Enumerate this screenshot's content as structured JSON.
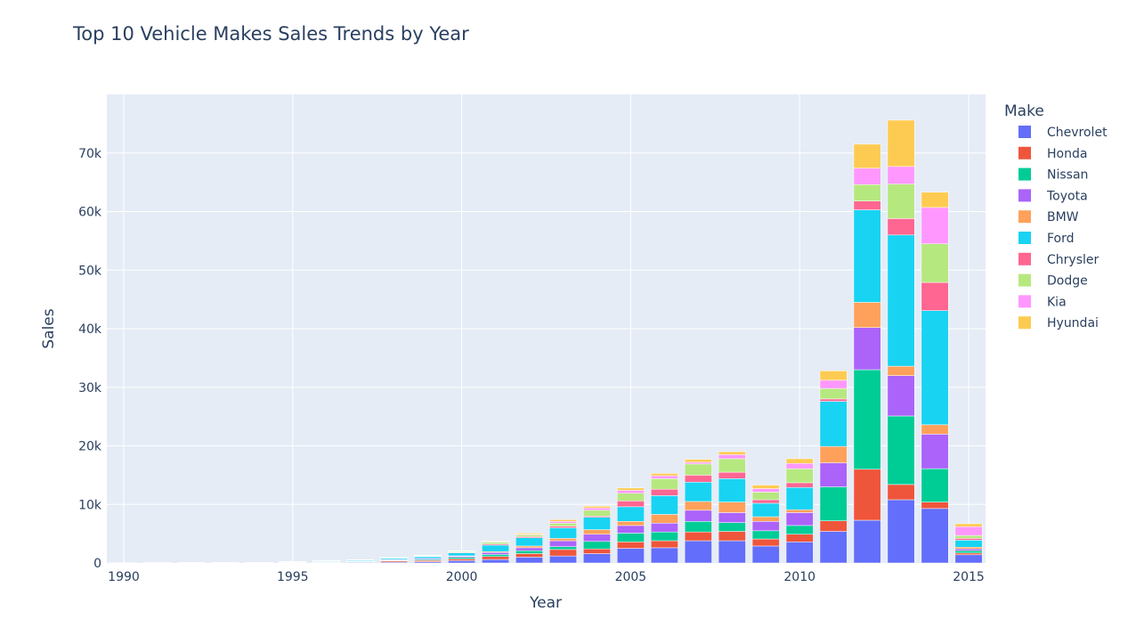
{
  "chart_data": {
    "type": "bar",
    "stacked": true,
    "title": "Top 10 Vehicle Makes Sales Trends by Year",
    "xlabel": "Year",
    "ylabel": "Sales",
    "legend_title": "Make",
    "legend_position": "right",
    "xlim": [
      1989.5,
      2015.5
    ],
    "ylim": [
      0,
      80000
    ],
    "x_ticks": [
      1990,
      1995,
      2000,
      2005,
      2010,
      2015
    ],
    "y_ticks": [
      0,
      10000,
      20000,
      30000,
      40000,
      50000,
      60000,
      70000
    ],
    "y_tick_labels": [
      "0",
      "10k",
      "20k",
      "30k",
      "40k",
      "50k",
      "60k",
      "70k"
    ],
    "x": [
      1990,
      1991,
      1992,
      1993,
      1994,
      1995,
      1996,
      1997,
      1998,
      1999,
      2000,
      2001,
      2002,
      2003,
      2004,
      2005,
      2006,
      2007,
      2008,
      2009,
      2010,
      2011,
      2012,
      2013,
      2014,
      2015
    ],
    "grid": true,
    "plot_bgcolor": "#e5ecf6",
    "series": [
      {
        "name": "Chevrolet",
        "color": "#636efa",
        "values": [
          10,
          15,
          20,
          25,
          30,
          60,
          80,
          110,
          160,
          220,
          400,
          600,
          1000,
          1200,
          1600,
          2500,
          2600,
          3800,
          3800,
          2900,
          3600,
          5400,
          7300,
          10800,
          9300,
          1400
        ]
      },
      {
        "name": "Honda",
        "color": "#ef553b",
        "values": [
          5,
          8,
          10,
          15,
          15,
          40,
          60,
          80,
          200,
          200,
          300,
          500,
          600,
          1100,
          800,
          1100,
          1200,
          1500,
          1600,
          1200,
          1300,
          1800,
          8700,
          2600,
          1100,
          300
        ]
      },
      {
        "name": "Nissan",
        "color": "#00cc96",
        "values": [
          5,
          5,
          8,
          10,
          10,
          30,
          40,
          50,
          100,
          150,
          250,
          350,
          500,
          500,
          1300,
          1500,
          1500,
          1800,
          1500,
          1400,
          1500,
          5800,
          17000,
          11700,
          5700,
          400
        ]
      },
      {
        "name": "Toyota",
        "color": "#ab63fa",
        "values": [
          5,
          5,
          8,
          10,
          10,
          30,
          40,
          50,
          100,
          150,
          200,
          350,
          500,
          1000,
          1200,
          1300,
          1500,
          1900,
          1700,
          1600,
          2200,
          4100,
          7200,
          6900,
          5900,
          300
        ]
      },
      {
        "name": "BMW",
        "color": "#ffa15a",
        "values": [
          2,
          2,
          3,
          5,
          5,
          10,
          20,
          30,
          50,
          60,
          80,
          150,
          300,
          400,
          800,
          700,
          1500,
          1500,
          1800,
          800,
          500,
          2800,
          4300,
          1600,
          1600,
          300
        ]
      },
      {
        "name": "Ford",
        "color": "#19d3f3",
        "values": [
          10,
          15,
          20,
          25,
          30,
          60,
          100,
          150,
          200,
          300,
          500,
          1100,
          1400,
          1800,
          2100,
          2500,
          3200,
          3300,
          4000,
          2300,
          3800,
          7700,
          15800,
          22400,
          19500,
          1200
        ]
      },
      {
        "name": "Chrysler",
        "color": "#ff6692",
        "values": [
          3,
          3,
          5,
          5,
          5,
          10,
          20,
          30,
          50,
          80,
          100,
          200,
          200,
          300,
          200,
          1000,
          1100,
          1200,
          1100,
          600,
          800,
          400,
          1500,
          2800,
          4800,
          300
        ]
      },
      {
        "name": "Dodge",
        "color": "#b6e880",
        "values": [
          3,
          3,
          5,
          5,
          5,
          15,
          20,
          30,
          50,
          80,
          150,
          300,
          300,
          500,
          1000,
          1300,
          1800,
          1900,
          2300,
          1300,
          2400,
          1800,
          2800,
          5900,
          6600,
          500
        ]
      },
      {
        "name": "Kia",
        "color": "#ff97ff",
        "values": [
          1,
          1,
          2,
          2,
          2,
          5,
          10,
          15,
          30,
          40,
          60,
          100,
          100,
          300,
          400,
          500,
          500,
          300,
          700,
          600,
          900,
          1400,
          2800,
          3000,
          6200,
          1500
        ]
      },
      {
        "name": "Hyundai",
        "color": "#fecb52",
        "values": [
          1,
          1,
          2,
          2,
          2,
          5,
          10,
          15,
          30,
          40,
          60,
          100,
          200,
          300,
          300,
          400,
          400,
          500,
          500,
          600,
          800,
          1600,
          4100,
          7900,
          2600,
          500
        ]
      }
    ]
  }
}
